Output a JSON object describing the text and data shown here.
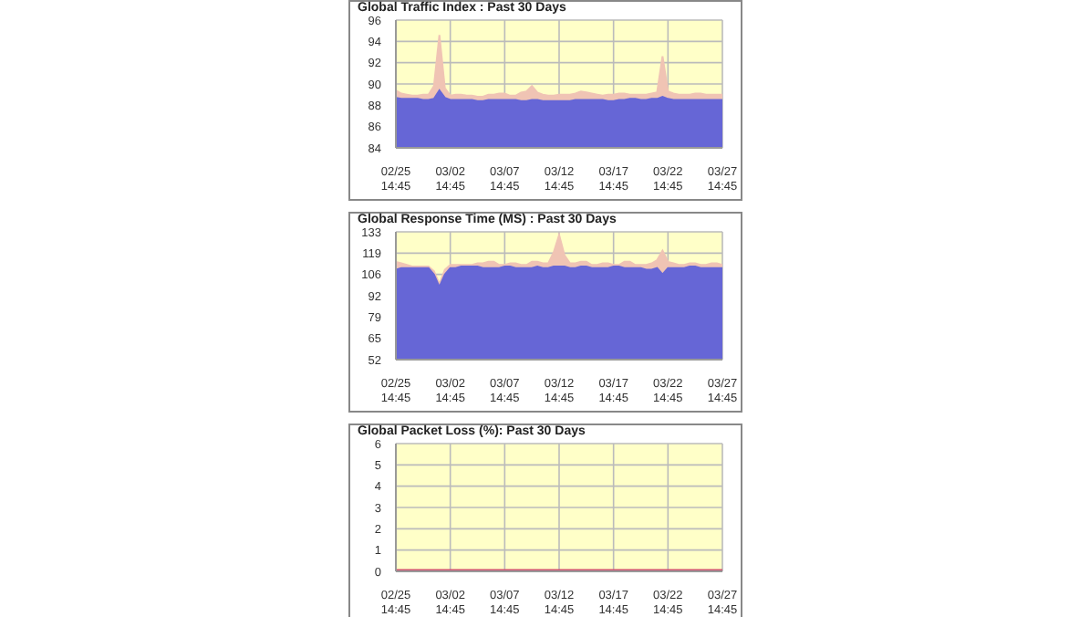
{
  "chart_data": [
    {
      "type": "area",
      "title": "Global Traffic Index : Past 30 Days",
      "categories": [
        "02/25\n14:45",
        null,
        null,
        null,
        null,
        null,
        null,
        null,
        null,
        null,
        "03/02\n14:45",
        null,
        null,
        null,
        null,
        null,
        null,
        null,
        null,
        null,
        "03/07\n14:45",
        null,
        null,
        null,
        null,
        null,
        null,
        null,
        null,
        null,
        "03/12\n14:45",
        null,
        null,
        null,
        null,
        null,
        null,
        null,
        null,
        null,
        "03/17\n14:45",
        null,
        null,
        null,
        null,
        null,
        null,
        null,
        null,
        null,
        "03/22\n14:45",
        null,
        null,
        null,
        null,
        null,
        null,
        null,
        null,
        null,
        "03/27\n14:45"
      ],
      "ylim": [
        84,
        96
      ],
      "yticks": [
        84,
        86,
        88,
        90,
        92,
        94,
        96
      ],
      "grid": true,
      "series": [
        {
          "color": "#f0c4b4",
          "values": [
            89.4,
            89.1,
            89.0,
            88.9,
            88.9,
            89.0,
            89.0,
            89.8,
            94.6,
            89.6,
            88.9,
            89.0,
            89.0,
            88.9,
            88.9,
            88.8,
            88.8,
            89.0,
            89.0,
            89.1,
            89.1,
            88.9,
            88.9,
            89.2,
            89.3,
            89.8,
            89.2,
            89.0,
            88.9,
            88.9,
            89.0,
            89.0,
            89.0,
            89.1,
            89.3,
            89.2,
            89.1,
            89.0,
            88.9,
            89.0,
            89.0,
            89.1,
            89.1,
            89.0,
            89.0,
            89.0,
            89.0,
            89.1,
            89.2,
            92.6,
            89.3,
            89.1,
            89.0,
            89.0,
            89.0,
            89.1,
            89.1,
            89.0,
            89.0,
            89.0,
            89.0
          ]
        },
        {
          "color": "#6666d6",
          "values": [
            88.7,
            88.6,
            88.6,
            88.6,
            88.6,
            88.5,
            88.5,
            88.6,
            89.4,
            88.7,
            88.5,
            88.5,
            88.5,
            88.5,
            88.5,
            88.4,
            88.4,
            88.5,
            88.5,
            88.5,
            88.5,
            88.5,
            88.5,
            88.4,
            88.4,
            88.5,
            88.5,
            88.4,
            88.4,
            88.4,
            88.4,
            88.4,
            88.4,
            88.5,
            88.5,
            88.5,
            88.5,
            88.5,
            88.5,
            88.4,
            88.4,
            88.5,
            88.5,
            88.6,
            88.6,
            88.5,
            88.5,
            88.6,
            88.6,
            88.8,
            88.6,
            88.5,
            88.5,
            88.5,
            88.5,
            88.5,
            88.5,
            88.5,
            88.5,
            88.5,
            88.5
          ]
        }
      ]
    },
    {
      "type": "area",
      "title": "Global Response Time (MS) : Past 30 Days",
      "categories": [
        "02/25\n14:45",
        null,
        null,
        null,
        null,
        null,
        null,
        null,
        null,
        null,
        "03/02\n14:45",
        null,
        null,
        null,
        null,
        null,
        null,
        null,
        null,
        null,
        "03/07\n14:45",
        null,
        null,
        null,
        null,
        null,
        null,
        null,
        null,
        null,
        "03/12\n14:45",
        null,
        null,
        null,
        null,
        null,
        null,
        null,
        null,
        null,
        "03/17\n14:45",
        null,
        null,
        null,
        null,
        null,
        null,
        null,
        null,
        null,
        "03/22\n14:45",
        null,
        null,
        null,
        null,
        null,
        null,
        null,
        null,
        null,
        "03/27\n14:45"
      ],
      "ylim": [
        52,
        133
      ],
      "yticks": [
        52,
        {
          "value": 65.5,
          "label": "65"
        },
        79,
        {
          "value": 92.5,
          "label": "92"
        },
        106,
        {
          "value": 119.5,
          "label": "119"
        },
        133
      ],
      "grid": true,
      "series": [
        {
          "color": "#f0c4b4",
          "values": [
            114,
            113,
            112,
            111,
            111,
            111,
            111,
            108,
            100,
            109,
            112,
            112,
            112,
            112,
            112,
            113,
            113,
            114,
            114,
            112,
            112,
            113,
            113,
            112,
            112,
            114,
            114,
            113,
            113,
            120,
            131,
            118,
            113,
            113,
            114,
            114,
            112,
            112,
            113,
            113,
            112,
            112,
            114,
            114,
            112,
            112,
            112,
            113,
            115,
            121,
            114,
            113,
            112,
            112,
            113,
            113,
            112,
            112,
            113,
            113,
            112
          ]
        },
        {
          "color": "#6666d6",
          "values": [
            109,
            110,
            110,
            110,
            110,
            110,
            110,
            106,
            98,
            106,
            110,
            110,
            111,
            111,
            111,
            111,
            110,
            110,
            110,
            110,
            111,
            111,
            110,
            110,
            110,
            110,
            111,
            110,
            110,
            111,
            111,
            111,
            110,
            110,
            111,
            111,
            110,
            110,
            110,
            110,
            111,
            111,
            110,
            110,
            110,
            110,
            109,
            109,
            110,
            106,
            110,
            110,
            110,
            110,
            111,
            111,
            110,
            110,
            110,
            110,
            110
          ]
        }
      ]
    },
    {
      "type": "line",
      "title": "Global Packet Loss (%): Past 30 Days",
      "categories": [
        "02/25\n14:45",
        "03/02\n14:45",
        "03/07\n14:45",
        "03/12\n14:45",
        "03/17\n14:45",
        "03/22\n14:45",
        "03/27\n14:45"
      ],
      "ylim": [
        0,
        6
      ],
      "yticks": [
        0,
        1,
        2,
        3,
        4,
        5,
        6
      ],
      "grid": true,
      "series": [
        {
          "color": "#d05070",
          "values": [
            0,
            0,
            0,
            0,
            0,
            0,
            0
          ]
        }
      ]
    }
  ]
}
